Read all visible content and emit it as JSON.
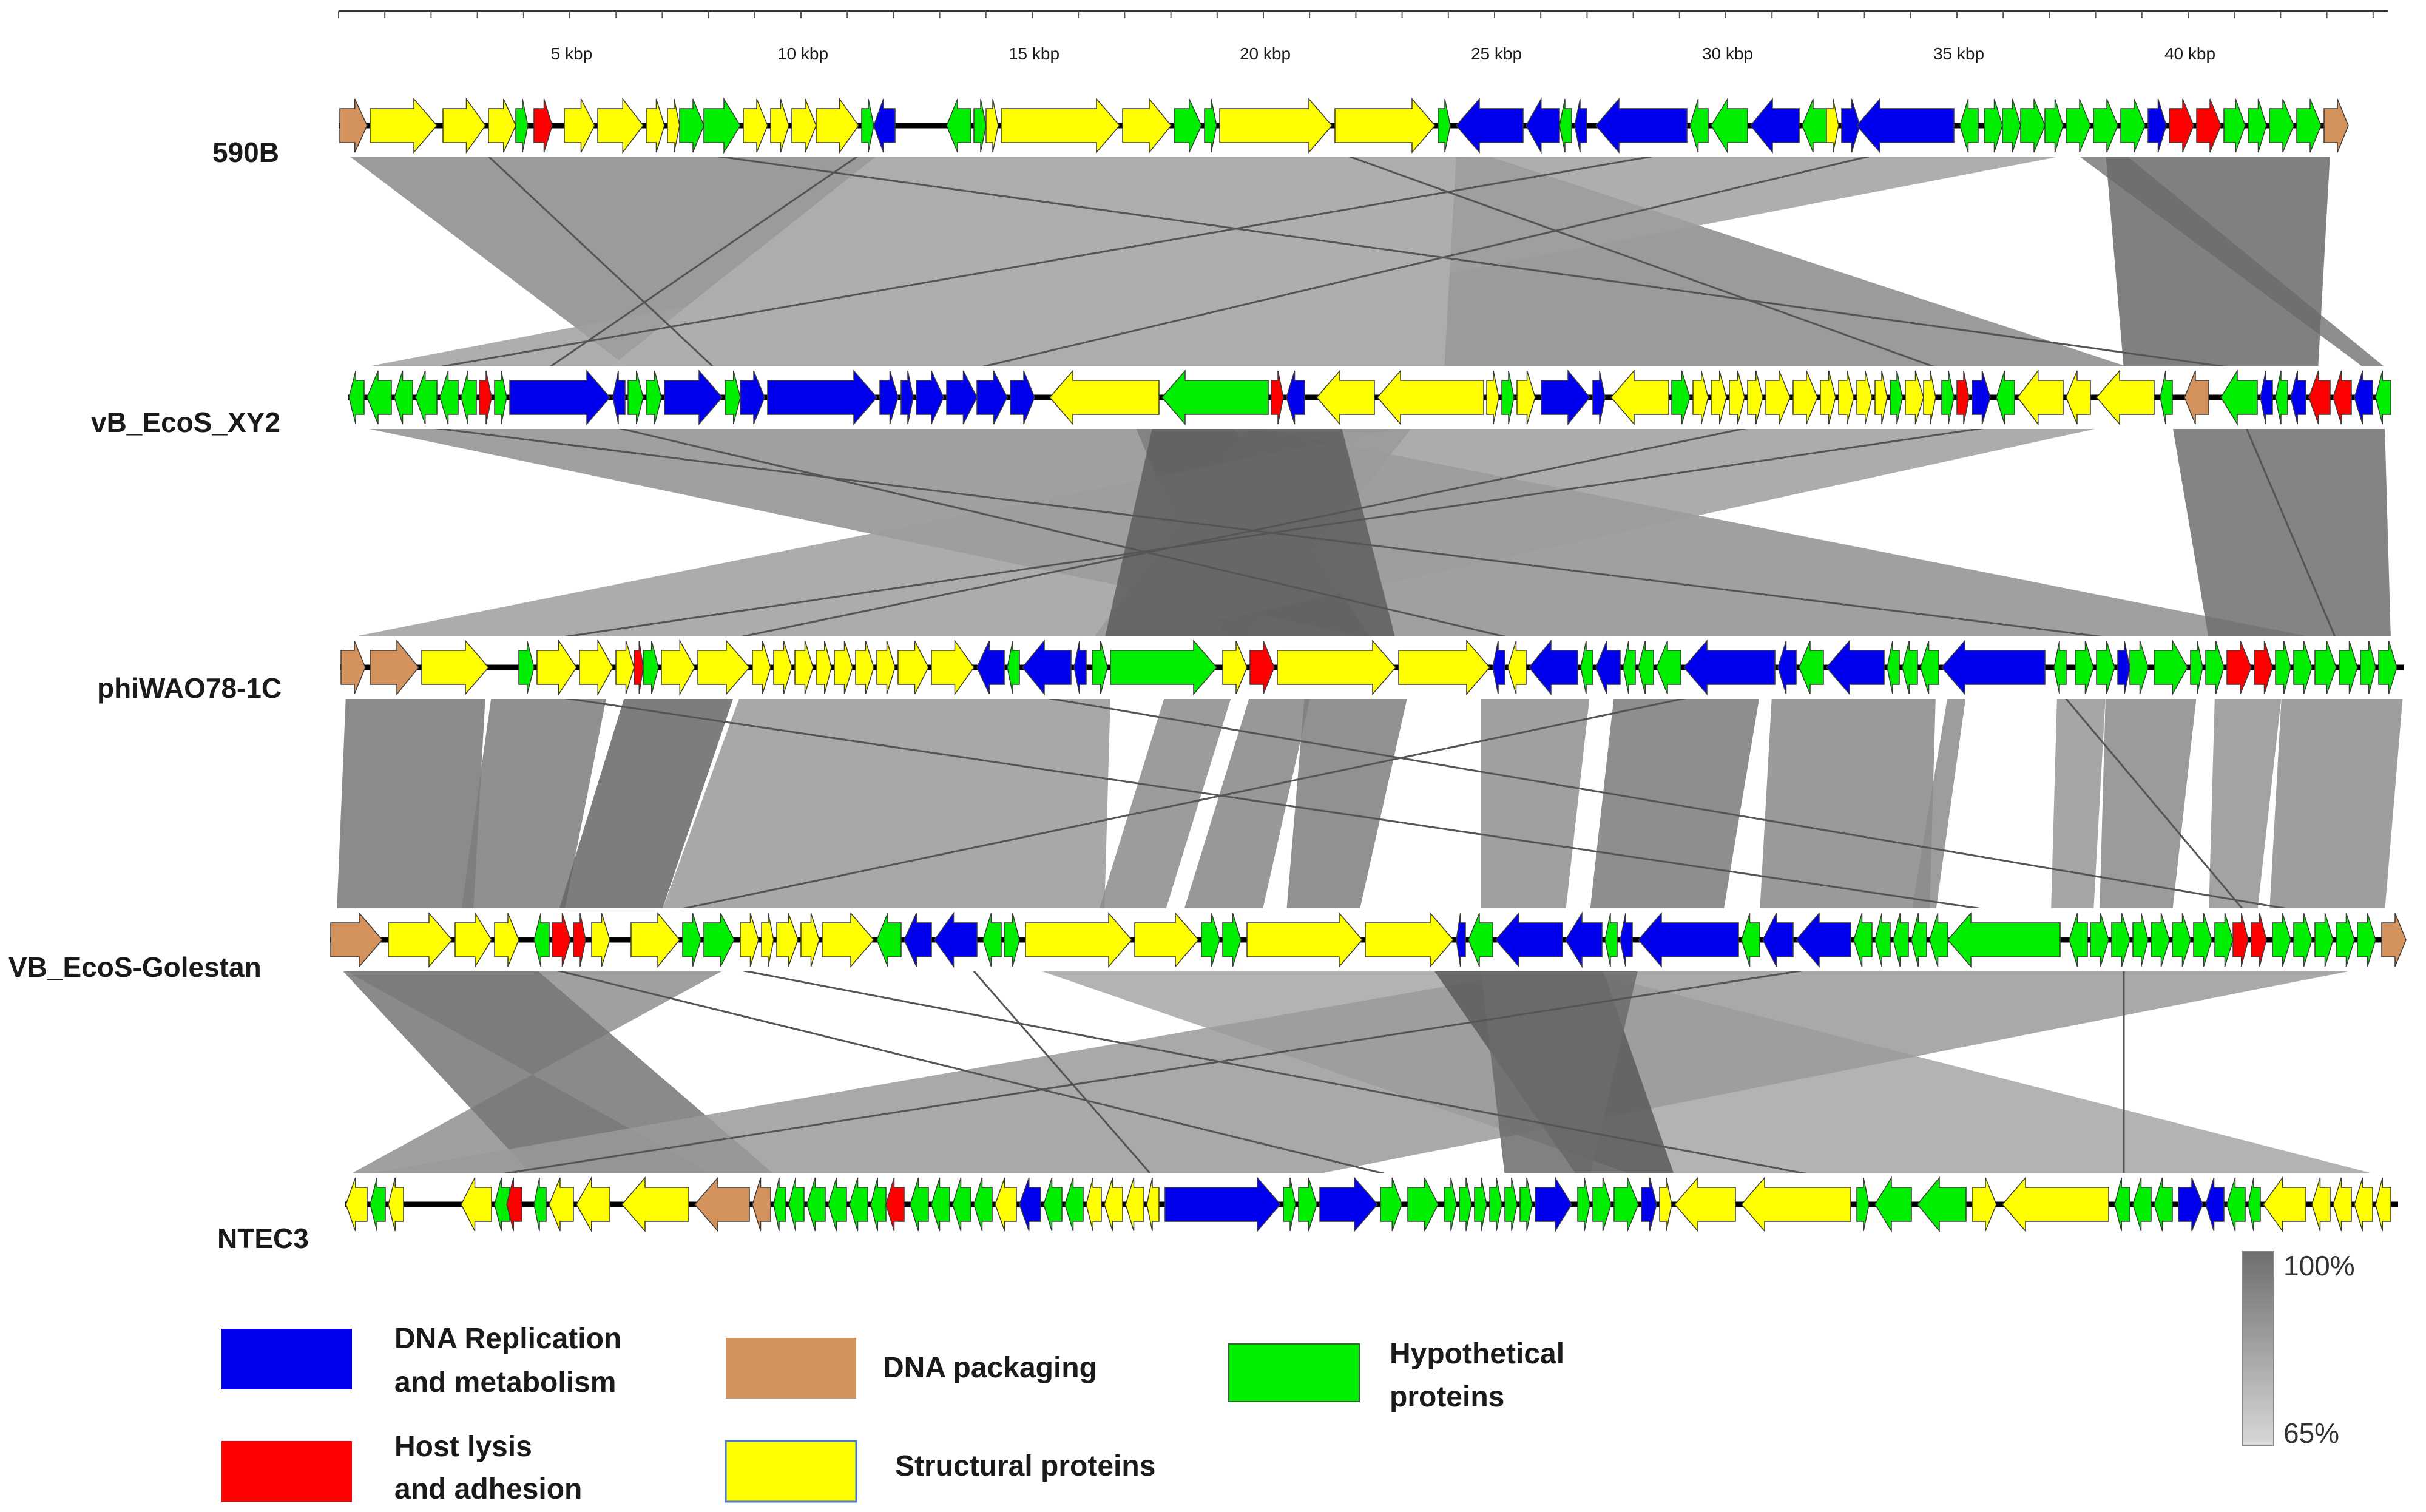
{
  "figure": {
    "type": "comparative genome alignment map (Easyfig-style)",
    "ruler": {
      "unit": "kbp",
      "max_kbp": 44.5,
      "tick_labels": [
        "5 kbp",
        "10 kbp",
        "15 kbp",
        "20 kbp",
        "25 kbp",
        "30 kbp",
        "35 kbp",
        "40 kbp"
      ]
    },
    "genomes": [
      {
        "name": "590B",
        "length_kbp": 43.2
      },
      {
        "name": "vB_EcoS_XY2",
        "length_kbp": 44.2
      },
      {
        "name": "phiWAO78-1C",
        "length_kbp": 44.6
      },
      {
        "name": "VB_EcoS-Golestan",
        "length_kbp": 44.7
      },
      {
        "name": "NTEC3",
        "length_kbp": 44.2
      }
    ],
    "identity_scale": {
      "max_label": "100%",
      "min_label": "65%"
    },
    "legend": [
      {
        "key": "replication",
        "color": "#0000ee",
        "line1": "DNA Replication",
        "line2": "and metabolism"
      },
      {
        "key": "lysis",
        "color": "#ff0000",
        "line1": "Host lysis",
        "line2": "and adhesion"
      },
      {
        "key": "packaging",
        "color": "#d4925c",
        "line1": "DNA packaging",
        "line2": ""
      },
      {
        "key": "structural",
        "color": "#ffff00",
        "line1": "Structural proteins",
        "line2": ""
      },
      {
        "key": "hypothetical",
        "color": "#00ee00",
        "line1": "Hypothetical",
        "line2": "proteins"
      }
    ],
    "colors": {
      "replication": "#0000ee",
      "lysis": "#ff0000",
      "packaging": "#d4925c",
      "structural": "#ffff00",
      "hypothetical": "#00ee00",
      "backbone": "#000000",
      "homology_dark": "#5a5a5a",
      "homology_light": "#c8c8c8"
    }
  }
}
